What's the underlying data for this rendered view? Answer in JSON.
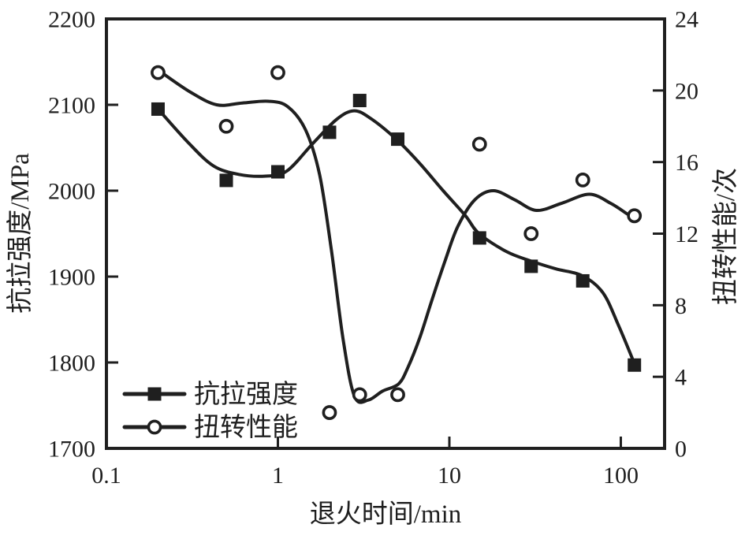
{
  "figure": {
    "background": "#ffffff",
    "ink_color": "#1f1f1f"
  },
  "chart_data": {
    "type": "line",
    "title": "",
    "x_axis": {
      "label": "退火时间/min",
      "scale": "log",
      "range": [
        0.1,
        180
      ],
      "ticks": [
        0.1,
        1,
        10,
        100
      ],
      "tick_labels": [
        "0.1",
        "1",
        "10",
        "100"
      ],
      "grid": false
    },
    "y_left": {
      "label": "抗拉强度/MPa",
      "range": [
        1700,
        2200
      ],
      "ticks": [
        1700,
        1800,
        1900,
        2000,
        2100,
        2200
      ]
    },
    "y_right": {
      "label": "扭转性能/次",
      "range": [
        0,
        24
      ],
      "ticks": [
        0,
        4,
        8,
        12,
        16,
        20,
        24
      ]
    },
    "legend": {
      "position": "lower-left",
      "items": [
        "抗拉强度",
        "扭转性能"
      ]
    },
    "series": [
      {
        "name": "抗拉强度",
        "axis": "left",
        "marker": "filled-square",
        "line": "smooth-fit",
        "points": [
          [
            0.2,
            2095
          ],
          [
            0.5,
            2012
          ],
          [
            1,
            2022
          ],
          [
            2,
            2068
          ],
          [
            3,
            2105
          ],
          [
            5,
            2060
          ],
          [
            15,
            1945
          ],
          [
            30,
            1912
          ],
          [
            60,
            1895
          ],
          [
            120,
            1797
          ]
        ],
        "curve": [
          [
            0.2,
            2095
          ],
          [
            0.3,
            2056
          ],
          [
            0.42,
            2029
          ],
          [
            0.59,
            2019
          ],
          [
            0.85,
            2017
          ],
          [
            1.13,
            2023
          ],
          [
            1.6,
            2055
          ],
          [
            2.2,
            2083
          ],
          [
            2.78,
            2093
          ],
          [
            3.48,
            2084
          ],
          [
            4.9,
            2060
          ],
          [
            6.7,
            2032
          ],
          [
            9.2,
            2000
          ],
          [
            12.4,
            1971
          ],
          [
            14.9,
            1950
          ],
          [
            21.6,
            1929
          ],
          [
            30,
            1918
          ],
          [
            41.8,
            1909
          ],
          [
            59.5,
            1901
          ],
          [
            78.7,
            1881
          ],
          [
            97.5,
            1842
          ],
          [
            121,
            1797
          ]
        ]
      },
      {
        "name": "扭转性能",
        "axis": "right",
        "marker": "open-circle",
        "line": "smooth-fit",
        "points": [
          [
            0.2,
            21
          ],
          [
            0.5,
            18
          ],
          [
            1,
            21
          ],
          [
            2,
            2
          ],
          [
            3,
            3
          ],
          [
            5,
            3
          ],
          [
            15,
            17
          ],
          [
            30,
            12
          ],
          [
            60,
            15
          ],
          [
            120,
            13
          ]
        ],
        "curve": [
          [
            0.21,
            21
          ],
          [
            0.31,
            19.9
          ],
          [
            0.44,
            19.2
          ],
          [
            0.62,
            19.3
          ],
          [
            0.88,
            19.4
          ],
          [
            1.14,
            19.1
          ],
          [
            1.45,
            17.8
          ],
          [
            1.75,
            15.3
          ],
          [
            2.05,
            11.1
          ],
          [
            2.4,
            6.1
          ],
          [
            2.8,
            2.9
          ],
          [
            3.37,
            2.7
          ],
          [
            4.08,
            3.2
          ],
          [
            5.05,
            3.6
          ],
          [
            5.72,
            4.5
          ],
          [
            6.73,
            6.2
          ],
          [
            7.92,
            8.3
          ],
          [
            9.46,
            10.5
          ],
          [
            11.2,
            12.4
          ],
          [
            14.1,
            13.9
          ],
          [
            18.1,
            14.4
          ],
          [
            24,
            13.9
          ],
          [
            32.2,
            13.3
          ],
          [
            45.2,
            13.7
          ],
          [
            65.4,
            14.2
          ],
          [
            87.1,
            13.7
          ],
          [
            109,
            13.1
          ]
        ]
      }
    ]
  }
}
